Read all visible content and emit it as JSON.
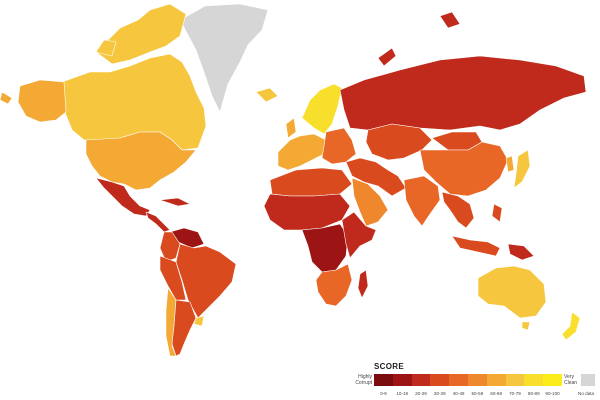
{
  "legend": {
    "title": "SCORE",
    "low_label_line1": "Highly",
    "low_label_line2": "Corrupt",
    "high_label_line1": "Very",
    "high_label_line2": "Clean",
    "no_data_label": "No data",
    "no_data_color": "#d6d6d6",
    "bins": [
      {
        "range": "0-9",
        "color": "#7a0c10"
      },
      {
        "range": "10-19",
        "color": "#9c1414"
      },
      {
        "range": "20-29",
        "color": "#c02a1c"
      },
      {
        "range": "30-39",
        "color": "#d94a1e"
      },
      {
        "range": "40-49",
        "color": "#e86626"
      },
      {
        "range": "50-59",
        "color": "#ef872c"
      },
      {
        "range": "60-69",
        "color": "#f3a934"
      },
      {
        "range": "70-79",
        "color": "#f6c73e"
      },
      {
        "range": "80-89",
        "color": "#f8df2c"
      },
      {
        "range": "90-100",
        "color": "#fbec1a"
      }
    ]
  },
  "regions": [
    {
      "name": "greenland",
      "bin": "no-data"
    },
    {
      "name": "canada",
      "bin": "70-79"
    },
    {
      "name": "alaska",
      "bin": "60-69"
    },
    {
      "name": "usa",
      "bin": "60-69"
    },
    {
      "name": "mexico",
      "bin": "20-29"
    },
    {
      "name": "central-america",
      "bin": "20-29"
    },
    {
      "name": "venezuela",
      "bin": "10-19"
    },
    {
      "name": "colombia",
      "bin": "30-39"
    },
    {
      "name": "brazil",
      "bin": "30-39"
    },
    {
      "name": "peru",
      "bin": "30-39"
    },
    {
      "name": "chile",
      "bin": "60-69"
    },
    {
      "name": "argentina",
      "bin": "30-39"
    },
    {
      "name": "uruguay",
      "bin": "70-79"
    },
    {
      "name": "iceland",
      "bin": "70-79"
    },
    {
      "name": "scandinavia",
      "bin": "80-89"
    },
    {
      "name": "western-europe",
      "bin": "60-69"
    },
    {
      "name": "eastern-europe",
      "bin": "40-49"
    },
    {
      "name": "russia",
      "bin": "20-29"
    },
    {
      "name": "kazakhstan",
      "bin": "30-39"
    },
    {
      "name": "china",
      "bin": "40-49"
    },
    {
      "name": "mongolia",
      "bin": "30-39"
    },
    {
      "name": "middle-east",
      "bin": "30-39"
    },
    {
      "name": "arabia",
      "bin": "50-59"
    },
    {
      "name": "india",
      "bin": "40-49"
    },
    {
      "name": "southeast-asia",
      "bin": "30-39"
    },
    {
      "name": "japan",
      "bin": "70-79"
    },
    {
      "name": "korea",
      "bin": "60-69"
    },
    {
      "name": "north-africa",
      "bin": "30-39"
    },
    {
      "name": "sahel",
      "bin": "20-29"
    },
    {
      "name": "central-africa",
      "bin": "10-19"
    },
    {
      "name": "east-africa",
      "bin": "20-29"
    },
    {
      "name": "southern-africa",
      "bin": "40-49"
    },
    {
      "name": "madagascar",
      "bin": "20-29"
    },
    {
      "name": "indonesia",
      "bin": "30-39"
    },
    {
      "name": "papua",
      "bin": "20-29"
    },
    {
      "name": "australia",
      "bin": "70-79"
    },
    {
      "name": "new-zealand",
      "bin": "80-89"
    }
  ]
}
